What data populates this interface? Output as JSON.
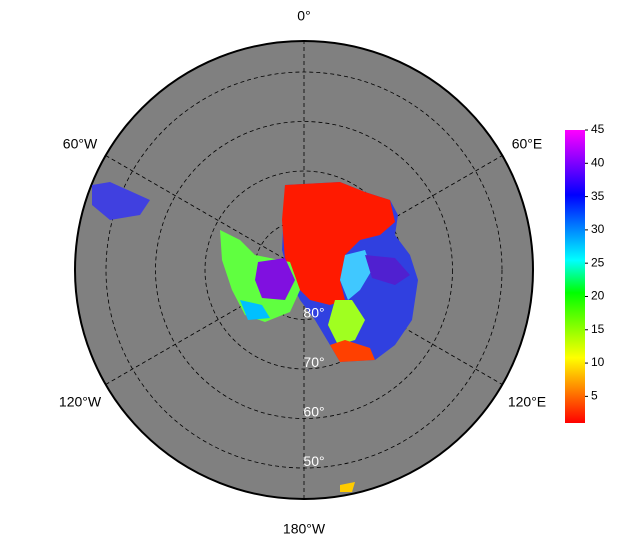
{
  "map": {
    "longitude_labels": [
      "0°",
      "60°E",
      "120°E",
      "180°W",
      "120°W",
      "60°W"
    ],
    "latitude_labels": [
      "80°",
      "70°",
      "60°",
      "50°"
    ],
    "colorbar": {
      "range": [
        1,
        45
      ],
      "ticks": [
        5,
        10,
        15,
        20,
        25,
        30,
        35,
        40,
        45
      ],
      "colors": [
        "#ff0000",
        "#ff8000",
        "#ffff00",
        "#80ff00",
        "#00ff00",
        "#00ffff",
        "#0080ff",
        "#0000ff",
        "#8000ff",
        "#ff00ff"
      ]
    }
  }
}
